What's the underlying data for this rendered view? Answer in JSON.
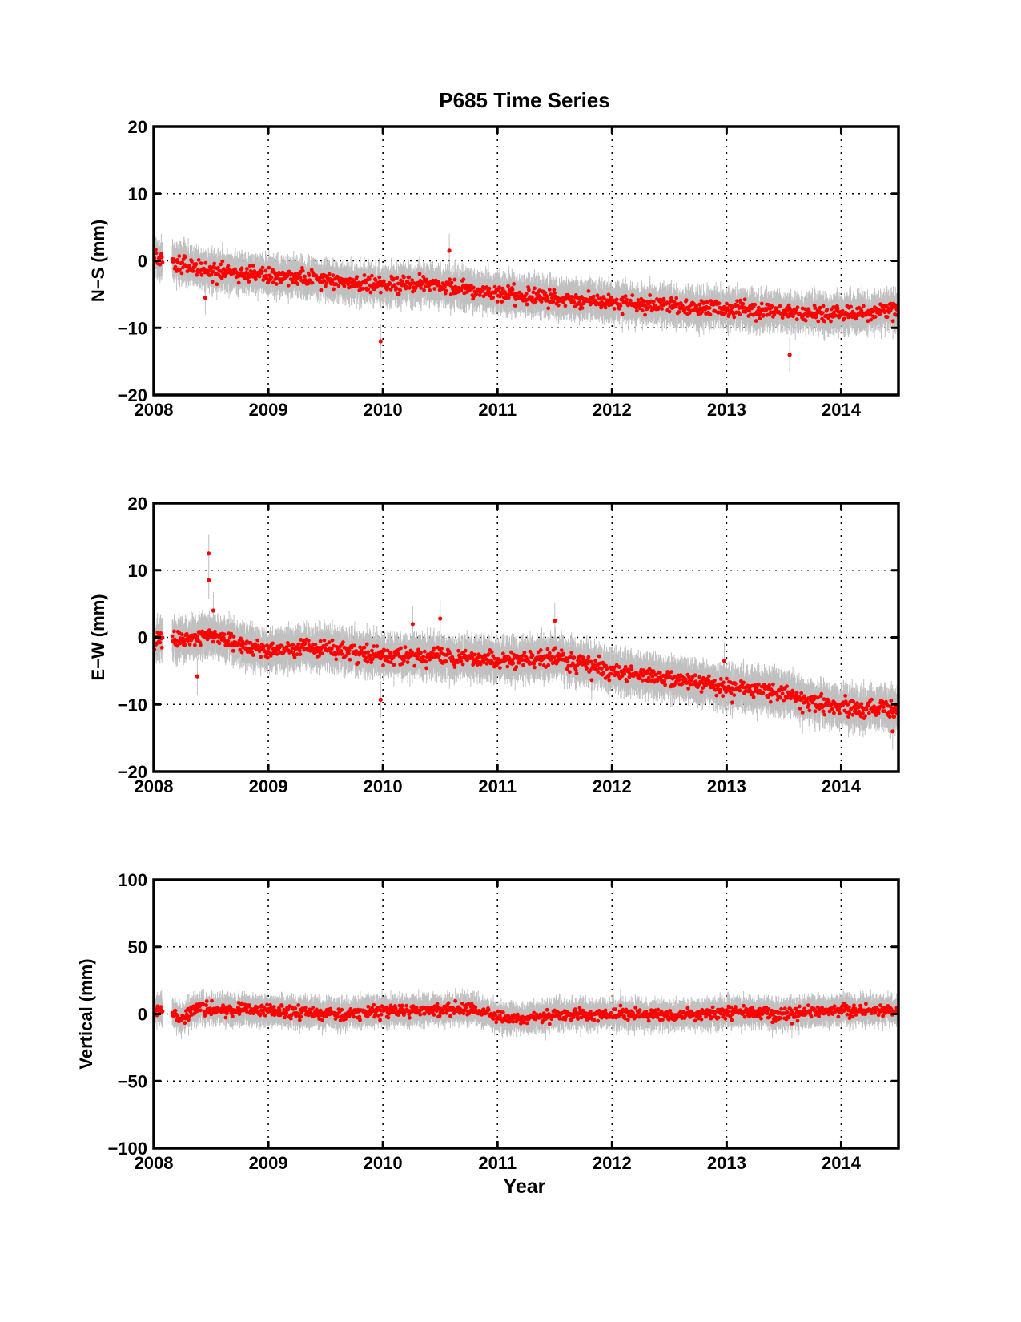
{
  "title": "P685 Time Series",
  "xlabel": "Year",
  "colors": {
    "point": "#ff0000",
    "errorbar": "#c0c0c0",
    "axis": "#000000",
    "grid": "#000000"
  },
  "chart_data": [
    {
      "type": "scatter",
      "title": "P685 Time Series",
      "xlabel": "",
      "ylabel": "N−S (mm)",
      "xlim": [
        2008,
        2014.5
      ],
      "ylim": [
        -20,
        20
      ],
      "xticks": [
        "2008",
        "2009",
        "2010",
        "2011",
        "2012",
        "2013",
        "2014"
      ],
      "yticks": [
        "20",
        "10",
        "0",
        "−10",
        "−20"
      ],
      "grid": "dotted",
      "series": [
        {
          "trend": {
            "x": [
              2008.0,
              2008.2,
              2008.5,
              2009.0,
              2009.5,
              2010.0,
              2010.3,
              2011.0,
              2011.5,
              2012.0,
              2012.5,
              2013.0,
              2013.5,
              2014.0,
              2014.5
            ],
            "y": [
              0.5,
              -0.3,
              -1.5,
              -2.2,
              -2.8,
              -3.7,
              -3.5,
              -4.8,
              -5.5,
              -6.2,
              -6.8,
              -7.2,
              -7.6,
              -8.0,
              -7.2
            ]
          },
          "error_halfwidth": 2.3,
          "outliers": [
            {
              "x": 2008.45,
              "y": -5.5
            },
            {
              "x": 2009.98,
              "y": -12.0
            },
            {
              "x": 2010.58,
              "y": 1.5
            },
            {
              "x": 2013.55,
              "y": -14.0
            }
          ]
        }
      ]
    },
    {
      "type": "scatter",
      "xlabel": "",
      "ylabel": "E−W (mm)",
      "xlim": [
        2008,
        2014.5
      ],
      "ylim": [
        -20,
        20
      ],
      "xticks": [
        "2008",
        "2009",
        "2010",
        "2011",
        "2012",
        "2013",
        "2014"
      ],
      "yticks": [
        "20",
        "10",
        "0",
        "−10",
        "−20"
      ],
      "grid": "dotted",
      "series": [
        {
          "trend": {
            "x": [
              2008.0,
              2008.3,
              2008.5,
              2009.0,
              2009.5,
              2010.0,
              2010.5,
              2011.0,
              2011.5,
              2012.0,
              2012.5,
              2013.0,
              2013.5,
              2013.7,
              2014.0,
              2014.5
            ],
            "y": [
              -0.5,
              -0.3,
              0.3,
              -2.0,
              -1.5,
              -2.8,
              -2.8,
              -3.5,
              -3.0,
              -5.0,
              -6.0,
              -7.5,
              -8.3,
              -9.5,
              -10.3,
              -10.8
            ]
          },
          "error_halfwidth": 2.5,
          "outliers": [
            {
              "x": 2008.48,
              "y": 12.5
            },
            {
              "x": 2008.48,
              "y": 8.5
            },
            {
              "x": 2008.52,
              "y": 4.0
            },
            {
              "x": 2008.38,
              "y": -5.8
            },
            {
              "x": 2009.98,
              "y": -9.3
            },
            {
              "x": 2010.26,
              "y": 2.0
            },
            {
              "x": 2010.5,
              "y": 2.8
            },
            {
              "x": 2011.5,
              "y": 2.5
            },
            {
              "x": 2012.98,
              "y": -3.5
            },
            {
              "x": 2014.45,
              "y": -14.0
            }
          ]
        }
      ]
    },
    {
      "type": "scatter",
      "xlabel": "Year",
      "ylabel": "Vertical (mm)",
      "xlim": [
        2008,
        2014.5
      ],
      "ylim": [
        -100,
        100
      ],
      "xticks": [
        "2008",
        "2009",
        "2010",
        "2011",
        "2012",
        "2013",
        "2014"
      ],
      "yticks": [
        "100",
        "50",
        "0",
        "−50",
        "−100"
      ],
      "grid": "dotted",
      "series": [
        {
          "trend": {
            "x": [
              2008.0,
              2008.15,
              2008.25,
              2008.35,
              2009.0,
              2009.5,
              2010.0,
              2010.3,
              2010.8,
              2011.0,
              2011.2,
              2011.6,
              2012.0,
              2012.5,
              2013.0,
              2013.5,
              2014.0,
              2014.5
            ],
            "y": [
              4,
              2,
              -5,
              4,
              3,
              0,
              2,
              3,
              4,
              -2,
              -4,
              0,
              0,
              -1,
              1,
              0,
              3,
              3
            ]
          },
          "error_halfwidth": 9,
          "outliers": []
        }
      ]
    }
  ]
}
